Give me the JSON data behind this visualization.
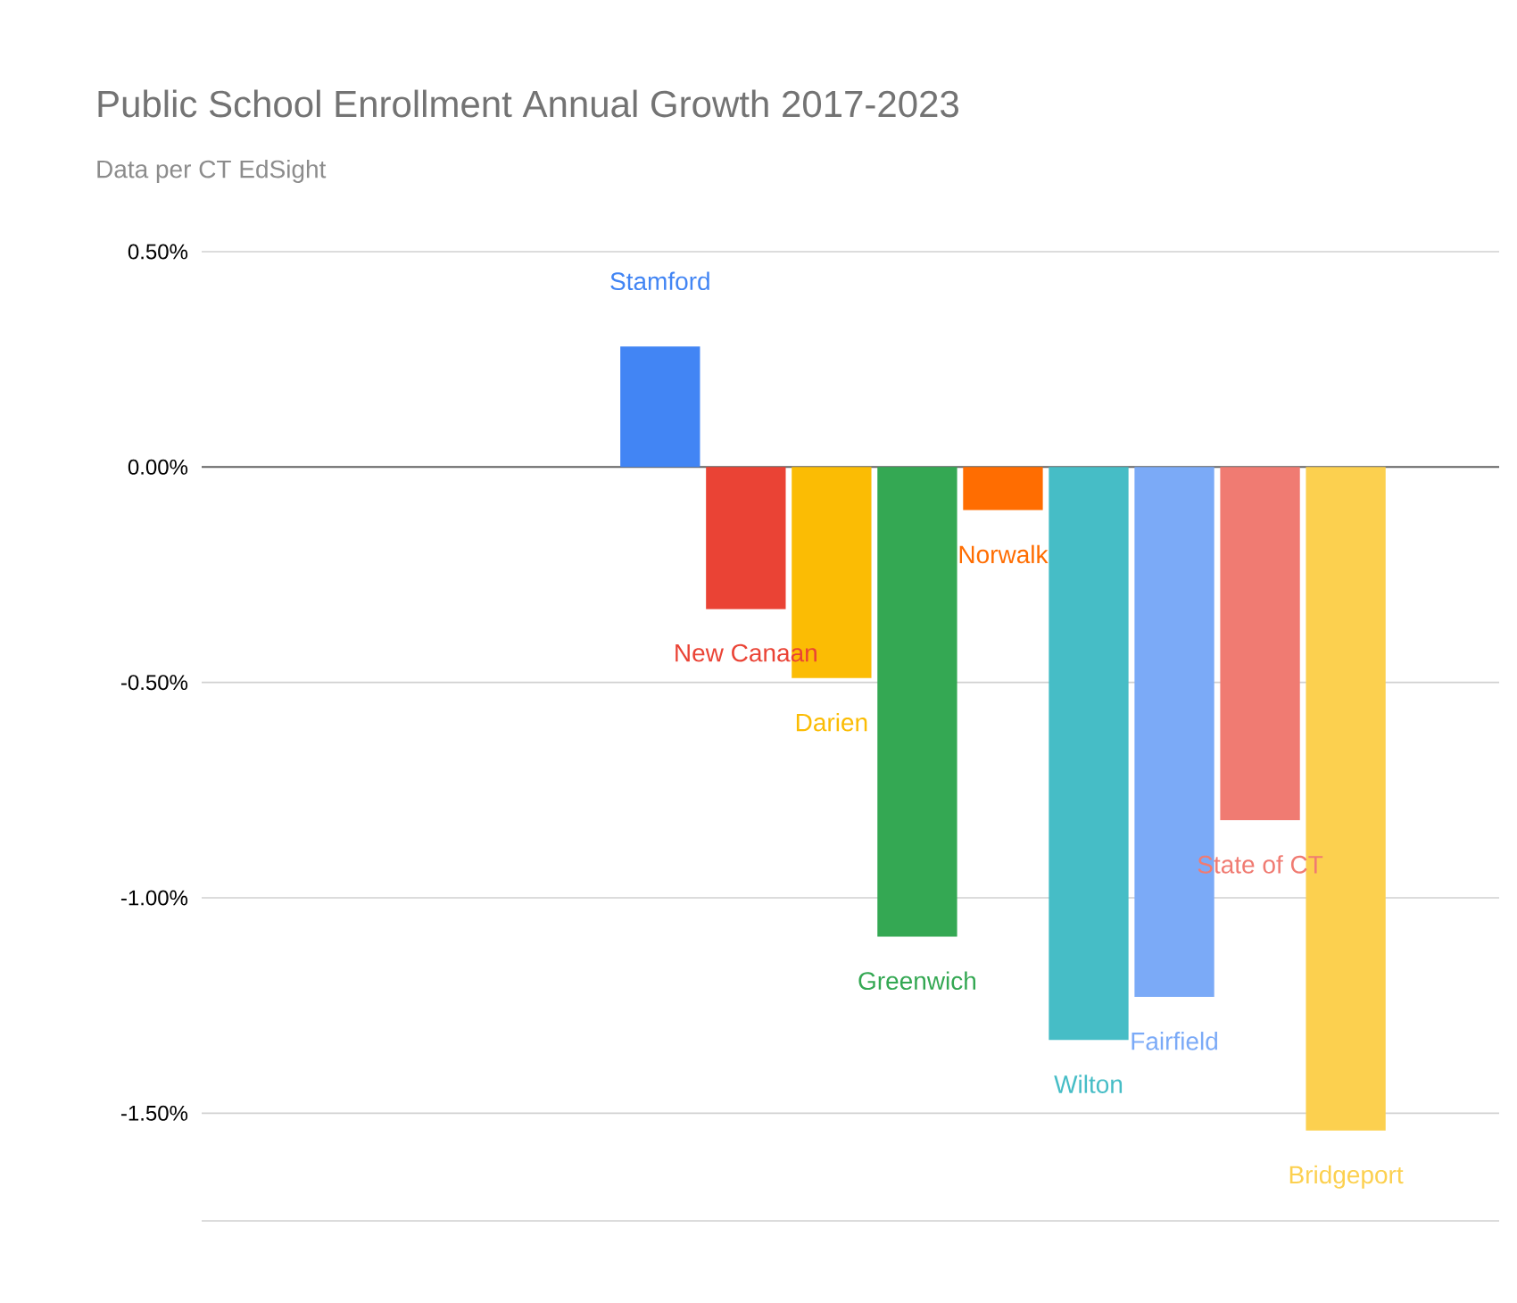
{
  "chart_data": {
    "type": "bar",
    "title": "Public School Enrollment Annual Growth 2017-2023",
    "subtitle": "Data per CT EdSight",
    "categories": [
      null
    ],
    "series": [
      {
        "name": "Stamford",
        "color": "#4285f4",
        "values": [
          0.28
        ]
      },
      {
        "name": "New Canaan",
        "color": "#ea4335",
        "values": [
          -0.33
        ]
      },
      {
        "name": "Darien",
        "color": "#fbbc04",
        "values": [
          -0.49
        ]
      },
      {
        "name": "Greenwich",
        "color": "#34a853",
        "values": [
          -1.09
        ]
      },
      {
        "name": "Norwalk",
        "color": "#ff6d01",
        "values": [
          -0.1
        ]
      },
      {
        "name": "Wilton",
        "color": "#46bdc6",
        "values": [
          -1.33
        ]
      },
      {
        "name": "Fairfield",
        "color": "#7baaf7",
        "values": [
          -1.23
        ]
      },
      {
        "name": "State of CT",
        "color": "#f07b72",
        "values": [
          -0.82
        ]
      },
      {
        "name": "Bridgeport",
        "color": "#fcd04f",
        "values": [
          -1.54
        ]
      }
    ],
    "ylim": [
      -1.75,
      0.5
    ],
    "yticks": [
      {
        "value": 0.5,
        "label": "0.50%"
      },
      {
        "value": 0,
        "label": "0.00%"
      },
      {
        "value": -0.5,
        "label": "-0.50%"
      },
      {
        "value": -1,
        "label": "-1.00%"
      },
      {
        "value": -1.5,
        "label": "-1.50%"
      },
      {
        "value": -1.75,
        "label": null
      }
    ],
    "grid": "y"
  }
}
